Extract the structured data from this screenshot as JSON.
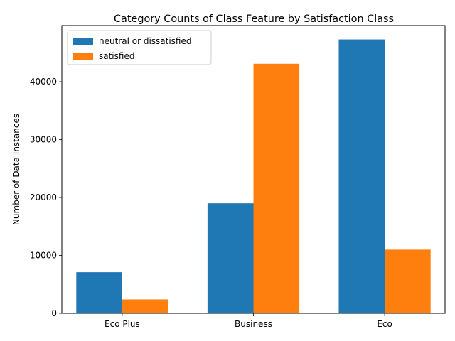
{
  "chart_data": {
    "type": "bar",
    "title": "Category Counts of Class Feature by Satisfaction Class",
    "xlabel": "",
    "ylabel": "Number of Data Instances",
    "categories": [
      "Eco Plus",
      "Business",
      "Eco"
    ],
    "series": [
      {
        "name": "neutral or dissatisfied",
        "color": "#1f77b4",
        "values": [
          7100,
          19000,
          47300
        ]
      },
      {
        "name": "satisfied",
        "color": "#ff7f0e",
        "values": [
          2400,
          43100,
          11000
        ]
      }
    ],
    "yticks": [
      0,
      10000,
      20000,
      30000,
      40000
    ],
    "ylim": [
      0,
      49700
    ],
    "grid": false,
    "legend_position": "top-left"
  }
}
